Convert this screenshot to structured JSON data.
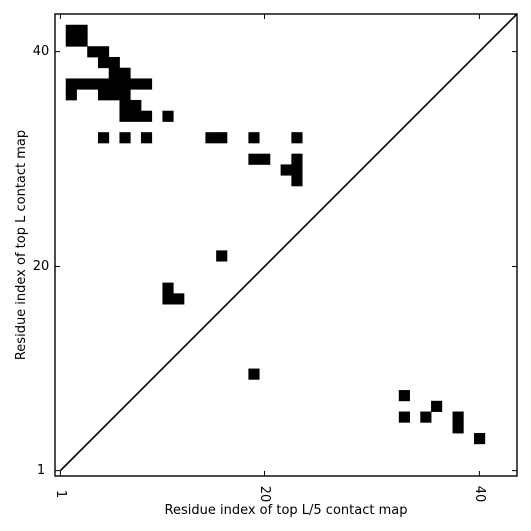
{
  "chart_data": {
    "type": "heatmap",
    "title": "",
    "xlabel": "Residue index of top L/5 contact map",
    "ylabel": "Residue index of top L contact map",
    "xlim": [
      0.5,
      43.5
    ],
    "ylim": [
      0.5,
      43.5
    ],
    "x_ticks": [
      1,
      20,
      40
    ],
    "y_ticks": [
      1,
      20,
      40
    ],
    "diagonal": true,
    "grid": false,
    "legend": "none",
    "colors": {
      "cell": "#000000",
      "background": "#ffffff",
      "axes": "#000000"
    },
    "cells_upper_top_L": [
      [
        2,
        41
      ],
      [
        3,
        41
      ],
      [
        2,
        42
      ],
      [
        3,
        42
      ],
      [
        4,
        40
      ],
      [
        5,
        40
      ],
      [
        5,
        39
      ],
      [
        6,
        39
      ],
      [
        2,
        37
      ],
      [
        3,
        37
      ],
      [
        4,
        37
      ],
      [
        5,
        37
      ],
      [
        6,
        37
      ],
      [
        7,
        37
      ],
      [
        8,
        37
      ],
      [
        9,
        37
      ],
      [
        2,
        36
      ],
      [
        5,
        36
      ],
      [
        6,
        36
      ],
      [
        7,
        36
      ],
      [
        6,
        38
      ],
      [
        7,
        38
      ],
      [
        7,
        35
      ],
      [
        8,
        35
      ],
      [
        7,
        34
      ],
      [
        8,
        34
      ],
      [
        9,
        34
      ],
      [
        11,
        34
      ],
      [
        5,
        32
      ],
      [
        7,
        32
      ],
      [
        9,
        32
      ],
      [
        15,
        32
      ],
      [
        16,
        32
      ],
      [
        19,
        32
      ],
      [
        23,
        32
      ],
      [
        19,
        30
      ],
      [
        20,
        30
      ],
      [
        23,
        30
      ],
      [
        22,
        29
      ],
      [
        23,
        29
      ],
      [
        23,
        28
      ],
      [
        16,
        21
      ],
      [
        11,
        18
      ],
      [
        11,
        17
      ],
      [
        12,
        17
      ]
    ],
    "cells_lower_top_L5": [
      [
        19,
        10
      ],
      [
        33,
        8
      ],
      [
        36,
        7
      ],
      [
        33,
        6
      ],
      [
        35,
        6
      ],
      [
        38,
        6
      ],
      [
        38,
        5
      ],
      [
        40,
        4
      ]
    ]
  }
}
